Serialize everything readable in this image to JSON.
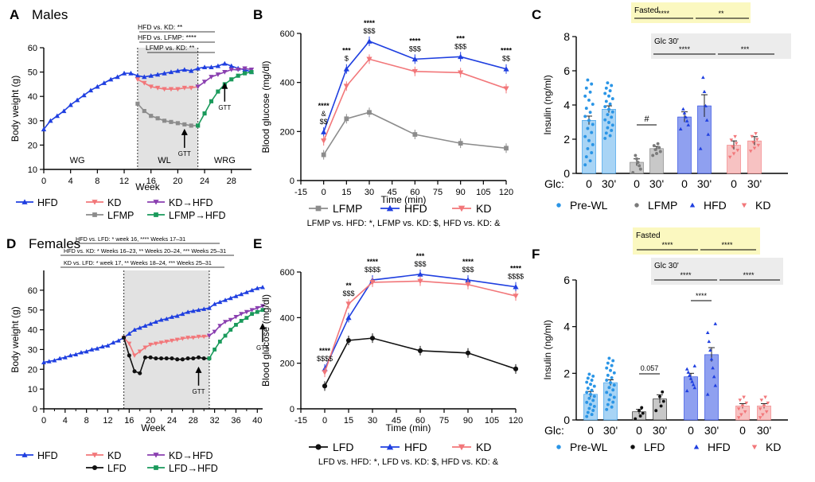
{
  "colors": {
    "hfd": "#1f3fe0",
    "kd": "#f2777a",
    "lfmp": "#8c8c8c",
    "lfd": "#111111",
    "kd_hfd": "#8a3fb0",
    "lfd_hfd": "#1a9a5b",
    "fasted_bg": "#fbf8c0",
    "glc_bg": "#ececec",
    "grey_region": "#e2e2e2",
    "light_blue": "#a8d4f5",
    "dot_blue": "#2a95e6",
    "grey_bar": "#c8c8c8",
    "grey_dot": "#7a7a7a",
    "kd_bar": "#f7c2c2",
    "hfd_bar": "#8fa0f0"
  },
  "chart_data": [
    {
      "id": "A",
      "panel_label": "A",
      "type": "line",
      "title": "Males",
      "xlabel": "Week",
      "ylabel": "Body weight (g)",
      "xlim": [
        0,
        31
      ],
      "ylim": [
        10,
        60
      ],
      "xticks": [
        0,
        4,
        8,
        12,
        16,
        20,
        24,
        28
      ],
      "yticks": [
        10,
        20,
        30,
        40,
        50,
        60
      ],
      "shaded_region": [
        14,
        23
      ],
      "phase_labels": [
        {
          "text": "WG",
          "x": 5
        },
        {
          "text": "WL",
          "x": 18
        },
        {
          "text": "WRG",
          "x": 27
        }
      ],
      "arrows": [
        {
          "x": 21,
          "y": 28,
          "text": "GTT"
        },
        {
          "x": 27,
          "y": 47,
          "text": "GTT"
        }
      ],
      "stats": [
        "HFD vs. KD: **",
        "HFD vs. LFMP: ****",
        "LFMP vs. KD: **"
      ],
      "series": [
        {
          "name": "HFD",
          "color": "hfd",
          "marker": "triangle",
          "x": [
            0,
            1,
            2,
            3,
            4,
            5,
            6,
            7,
            8,
            9,
            10,
            11,
            12,
            13,
            14,
            15,
            16,
            17,
            18,
            19,
            20,
            21,
            22,
            23,
            24,
            25,
            26,
            27,
            28,
            29,
            30,
            31
          ],
          "y": [
            26.5,
            30,
            32,
            34,
            36.5,
            38.5,
            40.5,
            42.5,
            44,
            45.5,
            47,
            48,
            49.5,
            49.5,
            48.5,
            48,
            48.5,
            49,
            49.5,
            50,
            50.5,
            51,
            50.5,
            51.5,
            52,
            52,
            52.5,
            53.5,
            52.5,
            51.5,
            51,
            50
          ]
        },
        {
          "name": "KD",
          "color": "kd",
          "marker": "triangle-down",
          "x": [
            14,
            15,
            16,
            17,
            18,
            19,
            20,
            21,
            22,
            23
          ],
          "y": [
            47,
            45.5,
            44,
            43.5,
            43,
            43,
            43,
            43.5,
            43.5,
            44
          ]
        },
        {
          "name": "LFMP",
          "color": "lfmp",
          "marker": "square",
          "x": [
            14,
            15,
            16,
            17,
            18,
            19,
            20,
            21,
            22,
            23
          ],
          "y": [
            37,
            34,
            32,
            31,
            30,
            29.5,
            29,
            28.5,
            28,
            28
          ]
        },
        {
          "name": "KD→HFD",
          "color": "kd_hfd",
          "marker": "triangle-down",
          "x": [
            23,
            24,
            25,
            26,
            27,
            28,
            29,
            30,
            31
          ],
          "y": [
            44,
            46,
            48,
            49,
            50,
            51,
            51,
            51.5,
            51
          ]
        },
        {
          "name": "LFMP→HFD",
          "color": "lfd_hfd",
          "marker": "square",
          "x": [
            23,
            24,
            25,
            26,
            27,
            28,
            29,
            30,
            31
          ],
          "y": [
            28,
            33,
            38,
            42,
            45,
            47,
            48.5,
            49.5,
            50
          ]
        }
      ]
    },
    {
      "id": "B",
      "panel_label": "B",
      "type": "line",
      "title": "",
      "xlabel": "Time (min)",
      "ylabel": "Blood glucose (mg/dl)",
      "xlim": [
        -15,
        120
      ],
      "ylim": [
        0,
        600
      ],
      "xticks": [
        -15,
        0,
        15,
        30,
        45,
        60,
        75,
        90,
        105,
        120
      ],
      "yticks": [
        0,
        200,
        400,
        600
      ],
      "series": [
        {
          "name": "LFMP",
          "color": "lfmp",
          "marker": "square",
          "x": [
            0,
            15,
            30,
            60,
            90,
            120
          ],
          "y": [
            105,
            252,
            278,
            188,
            152,
            132
          ]
        },
        {
          "name": "HFD",
          "color": "hfd",
          "marker": "triangle",
          "x": [
            0,
            15,
            30,
            60,
            90,
            120
          ],
          "y": [
            198,
            455,
            568,
            495,
            505,
            455
          ]
        },
        {
          "name": "KD",
          "color": "kd",
          "marker": "triangle-down",
          "x": [
            0,
            15,
            30,
            60,
            90,
            120
          ],
          "y": [
            162,
            385,
            495,
            445,
            440,
            375
          ]
        }
      ],
      "annotations": [
        {
          "x": 0,
          "lines": [
            "****",
            "&",
            "$$"
          ]
        },
        {
          "x": 15,
          "lines": [
            "***",
            "$"
          ]
        },
        {
          "x": 30,
          "lines": [
            "****",
            "$$$"
          ]
        },
        {
          "x": 60,
          "lines": [
            "****",
            "$$$"
          ]
        },
        {
          "x": 90,
          "lines": [
            "***",
            "$$$"
          ]
        },
        {
          "x": 120,
          "lines": [
            "****",
            "$$"
          ]
        }
      ],
      "legend": [
        "LFMP",
        "HFD",
        "KD"
      ],
      "footnote": "LFMP vs. HFD: *, LFMP vs. KD: $, HFD vs. KD: &"
    },
    {
      "id": "C",
      "panel_label": "C",
      "type": "bar",
      "ylabel": "Insulin (ng/ml)",
      "ylim": [
        0,
        8
      ],
      "yticks": [
        0,
        2,
        4,
        6,
        8
      ],
      "xlabel_prefix": "Glc:",
      "categories": [
        "0",
        "30'",
        "0",
        "30'",
        "0",
        "30'",
        "0",
        "30'"
      ],
      "groups": [
        "Pre-WL",
        "LFMP",
        "HFD",
        "KD"
      ],
      "values": [
        3.1,
        3.75,
        0.65,
        1.45,
        3.3,
        3.95,
        1.65,
        1.9
      ],
      "errors": [
        0.25,
        0.2,
        0.2,
        0.12,
        0.3,
        0.65,
        0.25,
        0.25
      ],
      "fasted": "Fasted",
      "fasted_stats": [
        "****",
        "**"
      ],
      "glc": "Glc 30'",
      "glc_stats": [
        "****",
        "***"
      ],
      "inner": {
        "text": "#"
      }
    },
    {
      "id": "D",
      "panel_label": "D",
      "type": "line",
      "title": "Females",
      "xlabel": "Week",
      "ylabel": "Body weight (g)",
      "xlim": [
        0,
        41
      ],
      "ylim": [
        0,
        70
      ],
      "xticks": [
        0,
        4,
        8,
        12,
        16,
        20,
        24,
        28,
        32,
        36,
        40
      ],
      "xticks_minor": [
        2,
        6,
        10,
        14,
        18,
        22,
        26,
        30,
        34,
        38
      ],
      "yticks": [
        0,
        10,
        20,
        30,
        40,
        50,
        60
      ],
      "shaded_region": [
        15,
        31
      ],
      "arrows": [
        {
          "x": 29,
          "y": 23,
          "text": "GTT"
        },
        {
          "x": 41,
          "y": 45,
          "text": "GTT"
        }
      ],
      "stats": [
        "HFD vs. LFD: * week 16, **** Weeks 17–31",
        "HFD vs. KD: * Weeks 16–23, ** Weeks 20–24, *** Weeks 25–31",
        "KD vs. LFD: * week 17, ** Weeks 18–24, *** Weeks 25–31"
      ],
      "series": [
        {
          "name": "HFD",
          "color": "hfd",
          "marker": "triangle",
          "x": [
            0,
            1,
            2,
            3,
            4,
            5,
            6,
            7,
            8,
            9,
            10,
            11,
            12,
            13,
            14,
            15,
            16,
            17,
            18,
            19,
            20,
            21,
            22,
            23,
            24,
            25,
            26,
            27,
            28,
            29,
            30,
            31,
            32,
            33,
            34,
            35,
            36,
            37,
            38,
            39,
            40,
            41
          ],
          "y": [
            23.5,
            24,
            24.5,
            25.5,
            26,
            27,
            27.5,
            28.5,
            29,
            30,
            30.5,
            31.5,
            32,
            33.5,
            34.5,
            36,
            38,
            40,
            41,
            42,
            43,
            44,
            45,
            45.5,
            46.5,
            47,
            48,
            49,
            49.5,
            50,
            50.5,
            51,
            53,
            54,
            55,
            56,
            57,
            58,
            59,
            60,
            61,
            61.5
          ]
        },
        {
          "name": "KD",
          "color": "kd",
          "marker": "triangle-down",
          "x": [
            15,
            16,
            17,
            18,
            19,
            20,
            21,
            22,
            23,
            24,
            25,
            26,
            27,
            28,
            29,
            30,
            31
          ],
          "y": [
            36,
            33,
            27,
            29,
            31,
            32.5,
            33,
            33.5,
            34,
            34.5,
            35,
            35.5,
            36,
            36,
            36.5,
            36.5,
            37
          ]
        },
        {
          "name": "LFD",
          "color": "lfd",
          "marker": "circle",
          "x": [
            15,
            16,
            17,
            18,
            19,
            20,
            21,
            22,
            23,
            24,
            25,
            26,
            27,
            28,
            29,
            30,
            31
          ],
          "y": [
            36,
            27,
            19,
            18,
            26,
            26,
            25.5,
            25.5,
            25.5,
            25.5,
            25,
            25,
            25.5,
            25.5,
            26,
            25.5,
            25.5
          ]
        },
        {
          "name": "KD→HFD",
          "color": "kd_hfd",
          "marker": "triangle-down",
          "x": [
            31,
            32,
            33,
            34,
            35,
            36,
            37,
            38,
            39,
            40,
            41
          ],
          "y": [
            37,
            39,
            42,
            44,
            45,
            46.5,
            48,
            49,
            50,
            51,
            52
          ]
        },
        {
          "name": "LFD→HFD",
          "color": "lfd_hfd",
          "marker": "square",
          "x": [
            31,
            32,
            33,
            34,
            35,
            36,
            37,
            38,
            39,
            40,
            41
          ],
          "y": [
            25.5,
            30,
            34,
            37,
            40,
            42.5,
            44.5,
            46,
            48,
            49,
            50
          ]
        }
      ]
    },
    {
      "id": "E",
      "panel_label": "E",
      "type": "line",
      "title": "",
      "xlabel": "Time (min)",
      "ylabel": "Blood glucose (mg/dl)",
      "xlim": [
        -15,
        120
      ],
      "ylim": [
        0,
        600
      ],
      "xticks": [
        -15,
        0,
        15,
        30,
        45,
        60,
        75,
        90,
        105,
        120
      ],
      "yticks": [
        0,
        200,
        400,
        600
      ],
      "series": [
        {
          "name": "LFD",
          "color": "lfd",
          "marker": "circle",
          "x": [
            0,
            15,
            30,
            60,
            90,
            120
          ],
          "y": [
            100,
            300,
            310,
            255,
            245,
            175
          ]
        },
        {
          "name": "HFD",
          "color": "hfd",
          "marker": "triangle",
          "x": [
            0,
            15,
            30,
            60,
            90,
            120
          ],
          "y": [
            175,
            400,
            565,
            590,
            565,
            535
          ]
        },
        {
          "name": "KD",
          "color": "kd",
          "marker": "triangle-down",
          "x": [
            0,
            15,
            30,
            60,
            90,
            120
          ],
          "y": [
            160,
            460,
            555,
            560,
            545,
            495
          ]
        }
      ],
      "annotations": [
        {
          "x": 0,
          "lines": [
            "****",
            "$$$$"
          ]
        },
        {
          "x": 15,
          "lines": [
            "**",
            "$$$"
          ]
        },
        {
          "x": 30,
          "lines": [
            "****",
            "$$$$"
          ]
        },
        {
          "x": 60,
          "lines": [
            "***",
            "$$$"
          ]
        },
        {
          "x": 90,
          "lines": [
            "****",
            "$$$"
          ]
        },
        {
          "x": 120,
          "lines": [
            "****",
            "$$$$"
          ]
        }
      ],
      "legend": [
        "LFD",
        "HFD",
        "KD"
      ],
      "footnote": "LFD vs. HFD: *, LFD vs. KD: $, HFD vs. KD: &"
    },
    {
      "id": "F",
      "panel_label": "F",
      "type": "bar",
      "ylabel": "Insulin (ng/ml)",
      "ylim": [
        0,
        6
      ],
      "yticks": [
        0,
        2,
        4,
        6
      ],
      "xlabel_prefix": "Glc:",
      "categories": [
        "0",
        "30'",
        "0",
        "30'",
        "0",
        "30'",
        "0",
        "30'"
      ],
      "groups": [
        "Pre-WL",
        "LFD",
        "HFD",
        "KD"
      ],
      "values": [
        1.1,
        1.6,
        0.35,
        0.9,
        1.85,
        2.8,
        0.6,
        0.6
      ],
      "errors": [
        0.12,
        0.12,
        0.1,
        0.18,
        0.15,
        0.3,
        0.1,
        0.1
      ],
      "fasted": "Fasted",
      "fasted_stats": [
        "****",
        "****"
      ],
      "glc": "Glc 30'",
      "glc_stats": [
        "****",
        "****"
      ],
      "inner": {
        "text": "0.057",
        "hfd_stat": "****"
      }
    }
  ],
  "legends": {
    "A": [
      [
        "HFD",
        "KD",
        "KD→HFD"
      ],
      [
        "",
        "LFMP",
        "LFMP→HFD"
      ]
    ],
    "C": [
      "Pre-WL",
      "LFMP",
      "HFD",
      "KD"
    ],
    "D": [
      [
        "HFD",
        "KD",
        "KD→HFD"
      ],
      [
        "",
        "LFD",
        "LFD→HFD"
      ]
    ],
    "F": [
      "Pre-WL",
      "LFD",
      "HFD",
      "KD"
    ]
  }
}
